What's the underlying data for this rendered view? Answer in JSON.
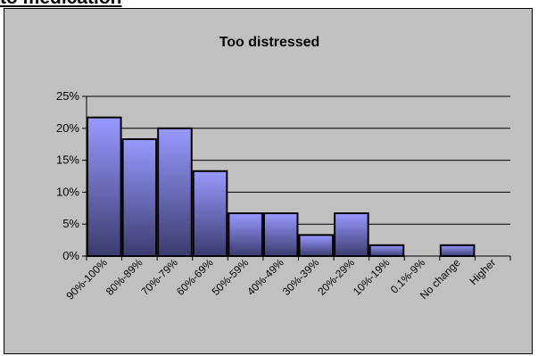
{
  "page_heading": "to medication",
  "chart_data": {
    "type": "bar",
    "title": "Too distressed",
    "xlabel": "",
    "ylabel": "",
    "categories": [
      "90%-100%",
      "80%-89%",
      "70%-79%",
      "60%-69%",
      "50%-59%",
      "40%-49%",
      "30%-39%",
      "20%-29%",
      "10%-19%",
      "0.1%-9%",
      "No change",
      "Higher"
    ],
    "values": [
      21.7,
      18.3,
      20.0,
      13.3,
      6.7,
      6.7,
      3.3,
      6.7,
      1.7,
      0,
      1.7,
      0
    ],
    "ylim": [
      0,
      25
    ],
    "yticks": [
      "0%",
      "5%",
      "10%",
      "15%",
      "20%",
      "25%"
    ],
    "grid": true,
    "legend": "none",
    "colors": {
      "frame_bg": "#c0c0c0",
      "plot_bg": "#c0c0c0",
      "bar_top": "#9999ff",
      "bar_bottom": "#3b3b70",
      "bar_border": "#000000"
    }
  }
}
